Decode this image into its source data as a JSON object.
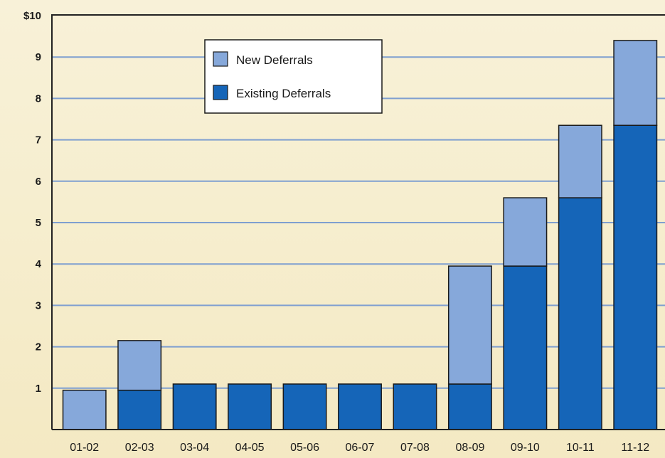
{
  "chart_data": {
    "type": "bar",
    "stacked": true,
    "categories": [
      "01-02",
      "02-03",
      "03-04",
      "04-05",
      "05-06",
      "06-07",
      "07-08",
      "08-09",
      "09-10",
      "10-11",
      "11-12"
    ],
    "series": [
      {
        "name": "Existing Deferrals",
        "color": "#1565b8",
        "values": [
          0,
          0.95,
          1.1,
          1.1,
          1.1,
          1.1,
          1.1,
          1.1,
          3.95,
          5.6,
          7.35
        ]
      },
      {
        "name": "New Deferrals",
        "color": "#86a8da",
        "values": [
          0.95,
          1.2,
          0,
          0,
          0,
          0,
          0,
          2.85,
          1.65,
          1.75,
          2.05
        ]
      }
    ],
    "y_ticks": [
      "1",
      "2",
      "3",
      "4",
      "5",
      "6",
      "7",
      "8",
      "9",
      "$10"
    ],
    "y_tick_values": [
      1,
      2,
      3,
      4,
      5,
      6,
      7,
      8,
      9,
      10
    ],
    "ylim": [
      0,
      10
    ],
    "grid": true,
    "legend_position": "top-center",
    "legend": [
      "New Deferrals",
      "Existing Deferrals"
    ],
    "colors": {
      "grid": "#7f9fd0",
      "axis": "#222222",
      "bar_outline": "#1a1a1a",
      "legend_bg": "#ffffff"
    }
  }
}
